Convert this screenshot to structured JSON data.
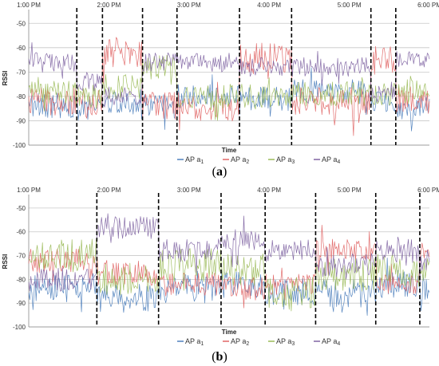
{
  "chart_data": [
    {
      "type": "line",
      "caption_letter": "a",
      "xlabel": "Time",
      "ylabel": "RSSI",
      "x_ticks": [
        "1:00 PM",
        "2:00 PM",
        "3:00 PM",
        "4:00 PM",
        "5:00 PM",
        "6:00 PM"
      ],
      "y_ticks": [
        -50,
        -60,
        -70,
        -80,
        -90,
        -100
      ],
      "ylim": [
        -100,
        -45
      ],
      "xlim_hours": [
        13.0,
        18.0
      ],
      "grid": true,
      "legend_position": "bottom",
      "segment_boundaries_hours": [
        13.6,
        13.92,
        14.42,
        14.85,
        15.63,
        16.28,
        17.27,
        17.58
      ],
      "series": [
        {
          "name": "AP a",
          "subscript": "1",
          "color": "#4f81bd",
          "levels": [
            -84,
            -85,
            -82,
            -84,
            -80,
            -81,
            -78,
            -82,
            -85
          ],
          "noise": 5
        },
        {
          "name": "AP a",
          "subscript": "2",
          "color": "#e06666",
          "levels": [
            -82,
            -83,
            -62,
            -84,
            -84,
            -64,
            -82,
            -65,
            -82
          ],
          "noise": 6
        },
        {
          "name": "AP a",
          "subscript": "3",
          "color": "#9bbb59",
          "levels": [
            -78,
            -80,
            -76,
            -68,
            -80,
            -80,
            -79,
            -79,
            -78
          ],
          "noise": 5
        },
        {
          "name": "AP a",
          "subscript": "4",
          "color": "#8064a2",
          "levels": [
            -66,
            -74,
            -80,
            -66,
            -66,
            -68,
            -68,
            -78,
            -64
          ],
          "noise": 4
        }
      ]
    },
    {
      "type": "line",
      "caption_letter": "b",
      "xlabel": "Time",
      "ylabel": "RSSI",
      "x_ticks": [
        "1:00 PM",
        "2:00 PM",
        "3:00 PM",
        "4:00 PM",
        "5:00 PM",
        "6:00 PM"
      ],
      "y_ticks": [
        -50,
        -60,
        -70,
        -80,
        -90,
        -100
      ],
      "ylim": [
        -100,
        -45
      ],
      "xlim_hours": [
        13.0,
        18.0
      ],
      "grid": true,
      "legend_position": "bottom",
      "segment_boundaries_hours": [
        13.85,
        14.62,
        15.4,
        15.95,
        16.58,
        17.33,
        17.88
      ],
      "series": [
        {
          "name": "AP a",
          "subscript": "1",
          "color": "#4f81bd",
          "levels": [
            -84,
            -88,
            -84,
            -82,
            -85,
            -86,
            -82,
            -84
          ],
          "noise": 6
        },
        {
          "name": "AP a",
          "subscript": "2",
          "color": "#e06666",
          "levels": [
            -72,
            -78,
            -82,
            -84,
            -82,
            -68,
            -82,
            -68
          ],
          "noise": 5
        },
        {
          "name": "AP a",
          "subscript": "3",
          "color": "#9bbb59",
          "levels": [
            -70,
            -80,
            -74,
            -76,
            -86,
            -78,
            -76,
            -76
          ],
          "noise": 7
        },
        {
          "name": "AP a",
          "subscript": "4",
          "color": "#8064a2",
          "levels": [
            -80,
            -58,
            -68,
            -64,
            -68,
            -74,
            -68,
            -72
          ],
          "noise": 5
        }
      ]
    }
  ]
}
